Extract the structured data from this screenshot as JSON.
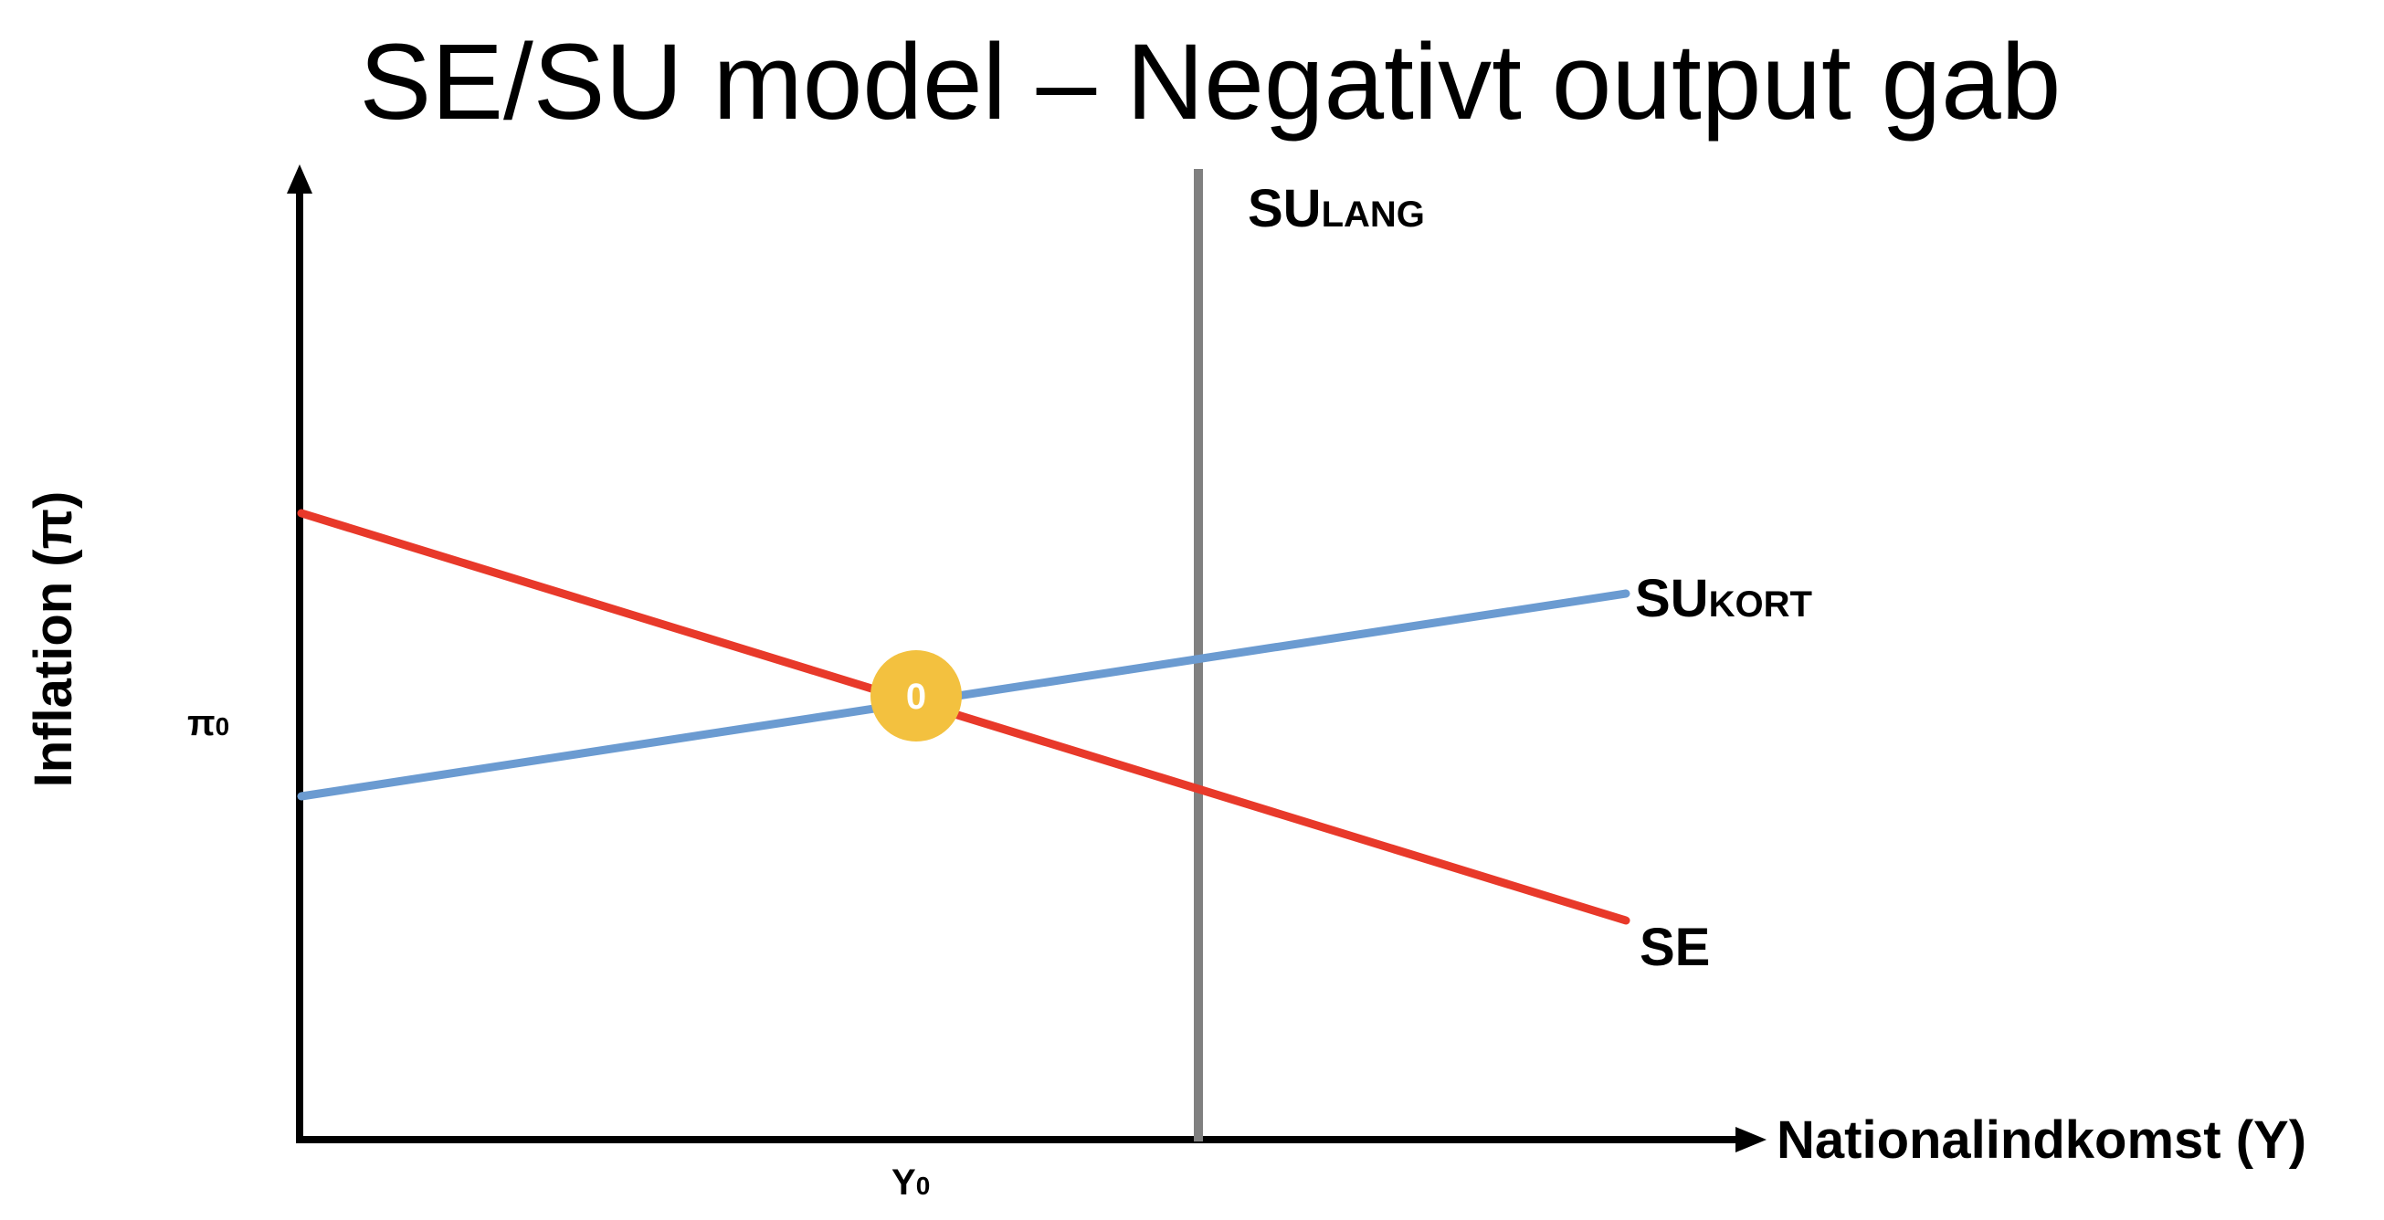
{
  "title": "SE/SU model – Negativt output gab",
  "axes": {
    "y_label": "Inflation (π)",
    "x_label": "Nationalindkomst (Y)"
  },
  "ticks": {
    "pi0_main": "π",
    "pi0_sub": "0",
    "y0_main": "Y",
    "y0_sub": "0"
  },
  "curves": {
    "su_lang": {
      "main": "SU",
      "sub": "LANG",
      "color": "#808080"
    },
    "su_kort": {
      "main": "SU",
      "sub": "KORT",
      "color": "#6b9bd1"
    },
    "se": {
      "main": "SE",
      "color": "#e8392a"
    }
  },
  "equilibrium": {
    "label": "0",
    "color": "#f3c13f"
  }
}
